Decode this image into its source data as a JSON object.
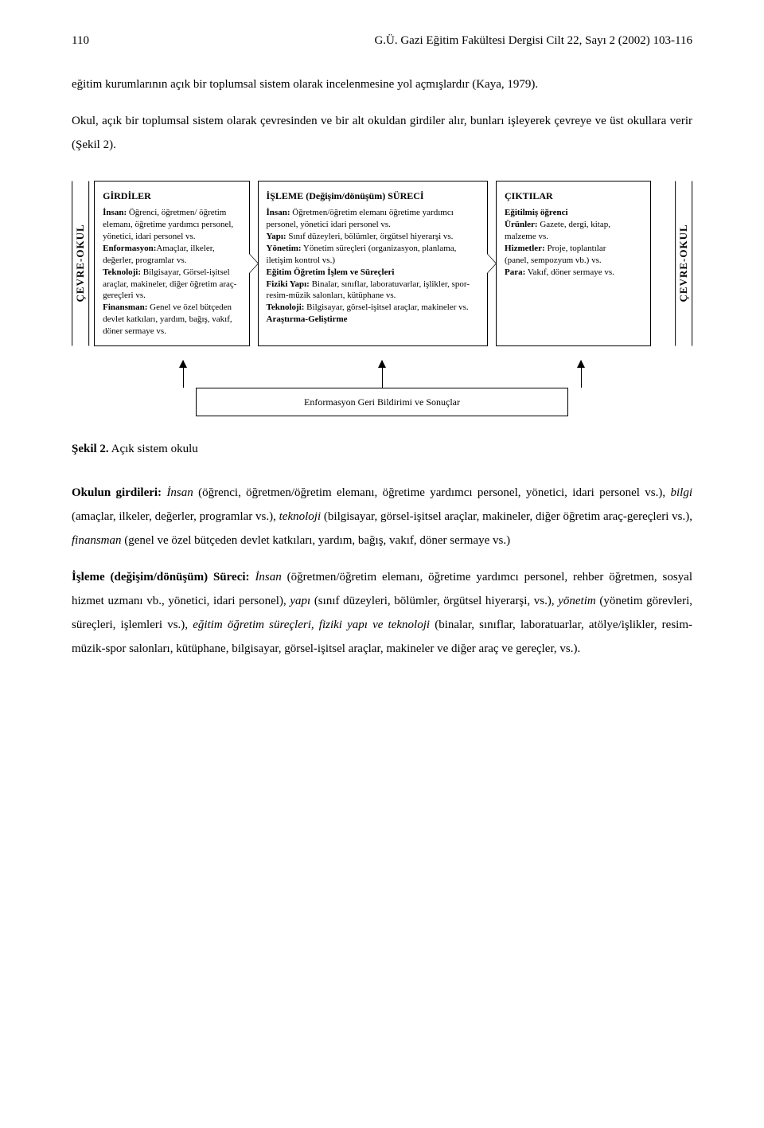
{
  "header": {
    "page_number": "110",
    "journal_ref": "G.Ü. Gazi Eğitim Fakültesi Dergisi Cilt 22, Sayı 2 (2002) 103-116"
  },
  "intro_paras": [
    "eğitim kurumlarının açık bir toplumsal sistem olarak incelenmesine yol açmışlardır (Kaya, 1979).",
    "Okul, açık bir toplumsal sistem olarak çevresinden ve bir alt okuldan girdiler alır, bunları işleyerek çevreye ve üst okullara verir (Şekil 2)."
  ],
  "diagram": {
    "env_label_left": "ÇEVRE-OKUL",
    "env_label_right": "ÇEVRE-OKUL",
    "girdiler": {
      "title": "GİRDİLER",
      "content_html": "<b>İnsan:</b> Öğrenci, öğretmen/ öğretim elemanı, öğretime yardımcı personel, yönetici, idari personel vs.<br><b>Enformasyon:</b>Amaçlar, ilkeler, değerler, programlar vs.<br><b>Teknoloji:</b> Bilgisayar, Görsel-işitsel araçlar, makineler, diğer öğretim araç-gereçleri vs.<br><b>Finansman:</b> Genel ve özel bütçeden devlet katkıları, yardım, bağış, vakıf, döner sermaye vs."
    },
    "isleme": {
      "title": "İŞLEME            (Değişim/dönüşüm) SÜRECİ",
      "content_html": "<b>İnsan:</b> Öğretmen/öğretim elemanı öğretime yardımcı personel, yönetici idari personel vs.<br><b>Yapı:</b> Sınıf düzeyleri, bölümler, örgütsel hiyerarşi vs.<br><b>Yönetim:</b> Yönetim süreçleri (organizasyon, planlama, iletişim kontrol vs.)<br><b>Eğitim Öğretim İşlem ve Süreçleri</b><br><b>Fiziki Yapı:</b> Binalar, sınıflar, laboratuvarlar, işlikler, spor-resim-müzik salonları, kütüphane vs.<br><b>Teknoloji:</b> Bilgisayar, görsel-işitsel araçlar, makineler vs.<br><b>Araştırma-Geliştirme</b>"
    },
    "ciktilar": {
      "title": "ÇIKTILAR",
      "content_html": "<b>Eğitilmiş öğrenci</b><br><b>Ürünler:</b> Gazete, dergi, kitap, malzeme vs.<br><b>Hizmetler:</b> Proje, toplantılar<br>(panel, sempozyum vb.) vs.<br><b>Para:</b> Vakıf, döner sermaye vs."
    },
    "feedback_label": "Enformasyon Geri Bildirimi ve Sonuçlar"
  },
  "caption": {
    "label": "Şekil 2.",
    "text": " Açık sistem okulu"
  },
  "body_paras": [
    "<b>Okulun girdileri:</b> <i>İnsan</i> (öğrenci, öğretmen/öğretim elemanı, öğretime yardımcı personel, yönetici, idari personel vs.), <i>bilgi</i> (amaçlar, ilkeler, değerler, programlar vs.), <i>teknoloji</i> (bilgisayar, görsel-işitsel araçlar, makineler, diğer öğretim araç-gereçleri vs.), <i>finansman</i> (genel ve özel bütçeden devlet katkıları, yardım, bağış, vakıf, döner sermaye vs.)",
    "<b>İşleme (değişim/dönüşüm) Süreci:</b> <i>İnsan</i> (öğretmen/öğretim elemanı, öğretime yardımcı personel, rehber öğretmen, sosyal hizmet uzmanı vb., yönetici, idari personel), <i>yapı</i> (sınıf düzeyleri, bölümler, örgütsel hiyerarşi, vs.), <i>yönetim</i> (yönetim görevleri, süreçleri, işlemleri vs.), <i>eğitim öğretim süreçleri, fiziki yapı ve teknoloji</i> (binalar, sınıflar, laboratuarlar, atölye/işlikler, resim-müzik-spor salonları, kütüphane, bilgisayar, görsel-işitsel araçlar, makineler ve diğer araç ve gereçler, vs.)."
  ],
  "style": {
    "font_body_pt": 15,
    "font_diagram_pt": 11,
    "line_height_body": 2.0,
    "background_color": "#ffffff",
    "text_color": "#000000",
    "border_color": "#000000"
  }
}
